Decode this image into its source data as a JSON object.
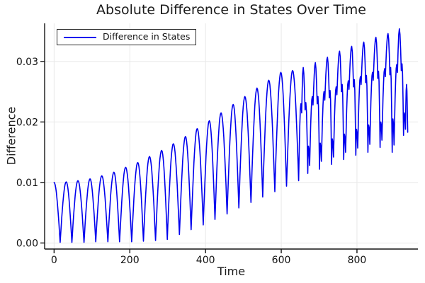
{
  "chart_data": {
    "type": "line",
    "title": "Absolute Difference in States Over Time",
    "xlabel": "Time",
    "ylabel": "Difference",
    "xlim": [
      -25,
      961
    ],
    "ylim": [
      -0.001,
      0.0363
    ],
    "grid": true,
    "legend": {
      "position": "top-left",
      "entries": [
        {
          "label": "Difference in States",
          "color": "#0000ee"
        }
      ]
    },
    "x_axis": {
      "tick_values": [
        0,
        200,
        400,
        600,
        800
      ],
      "tick_labels": [
        "0",
        "200",
        "400",
        "600",
        "800"
      ]
    },
    "y_axis": {
      "tick_values": [
        0,
        0.01,
        0.02,
        0.03
      ],
      "tick_labels": [
        "0.00",
        "0.01",
        "0.02",
        "0.03"
      ]
    },
    "series": [
      {
        "name": "Difference in States",
        "color": "#0000ee",
        "shape": "abs-oscillation-extrema",
        "points": [
          [
            0,
            0.01
          ],
          [
            16,
            0.0001
          ],
          [
            32,
            0.0101
          ],
          [
            47,
            0.0001
          ],
          [
            63,
            0.0103
          ],
          [
            79,
            0.0001
          ],
          [
            95,
            0.0106
          ],
          [
            110,
            0.0002
          ],
          [
            126,
            0.0111
          ],
          [
            142,
            0.0002
          ],
          [
            158,
            0.0117
          ],
          [
            173,
            0.0002
          ],
          [
            189,
            0.0125
          ],
          [
            205,
            0.0002
          ],
          [
            221,
            0.0133
          ],
          [
            236,
            0.0003
          ],
          [
            252,
            0.0143
          ],
          [
            268,
            0.0004
          ],
          [
            284,
            0.0153
          ],
          [
            299,
            0.0006
          ],
          [
            315,
            0.0164
          ],
          [
            331,
            0.0014
          ],
          [
            347,
            0.0176
          ],
          [
            362,
            0.0022
          ],
          [
            378,
            0.0189
          ],
          [
            394,
            0.003
          ],
          [
            410,
            0.0202
          ],
          [
            425,
            0.0039
          ],
          [
            441,
            0.0215
          ],
          [
            457,
            0.0048
          ],
          [
            473,
            0.0229
          ],
          [
            488,
            0.0058
          ],
          [
            504,
            0.0242
          ],
          [
            520,
            0.0067
          ],
          [
            536,
            0.0256
          ],
          [
            551,
            0.0076
          ],
          [
            567,
            0.0269
          ],
          [
            583,
            0.0085
          ],
          [
            599,
            0.0282
          ],
          [
            614,
            0.0094
          ],
          [
            630,
            0.0285
          ],
          [
            646,
            0.0103
          ],
          [
            652,
            0.023
          ],
          [
            654,
            0.0215
          ],
          [
            658,
            0.029
          ],
          [
            663,
            0.022
          ],
          [
            665,
            0.0232
          ],
          [
            670,
            0.0115
          ],
          [
            672,
            0.016
          ],
          [
            675,
            0.0128
          ],
          [
            682,
            0.0242
          ],
          [
            684,
            0.0228
          ],
          [
            690,
            0.0298
          ],
          [
            695,
            0.023
          ],
          [
            697,
            0.0242
          ],
          [
            701,
            0.0122
          ],
          [
            703,
            0.0165
          ],
          [
            706,
            0.0135
          ],
          [
            713,
            0.025
          ],
          [
            715,
            0.0236
          ],
          [
            722,
            0.0307
          ],
          [
            727,
            0.024
          ],
          [
            729,
            0.0252
          ],
          [
            733,
            0.013
          ],
          [
            735,
            0.0172
          ],
          [
            738,
            0.0142
          ],
          [
            745,
            0.0258
          ],
          [
            747,
            0.0245
          ],
          [
            754,
            0.0317
          ],
          [
            759,
            0.025
          ],
          [
            761,
            0.0262
          ],
          [
            765,
            0.0138
          ],
          [
            767,
            0.018
          ],
          [
            770,
            0.015
          ],
          [
            777,
            0.0268
          ],
          [
            779,
            0.0254
          ],
          [
            786,
            0.0325
          ],
          [
            791,
            0.0258
          ],
          [
            793,
            0.027
          ],
          [
            797,
            0.0145
          ],
          [
            799,
            0.0188
          ],
          [
            802,
            0.0157
          ],
          [
            809,
            0.0275
          ],
          [
            811,
            0.0262
          ],
          [
            818,
            0.0332
          ],
          [
            823,
            0.0265
          ],
          [
            825,
            0.0277
          ],
          [
            829,
            0.015
          ],
          [
            831,
            0.0195
          ],
          [
            834,
            0.0163
          ],
          [
            841,
            0.0282
          ],
          [
            843,
            0.0269
          ],
          [
            850,
            0.034
          ],
          [
            855,
            0.0272
          ],
          [
            857,
            0.0284
          ],
          [
            861,
            0.0158
          ],
          [
            863,
            0.02
          ],
          [
            866,
            0.017
          ],
          [
            873,
            0.0288
          ],
          [
            875,
            0.0275
          ],
          [
            882,
            0.0346
          ],
          [
            887,
            0.0278
          ],
          [
            889,
            0.029
          ],
          [
            893,
            0.015
          ],
          [
            895,
            0.0205
          ],
          [
            898,
            0.0162
          ],
          [
            905,
            0.0295
          ],
          [
            907,
            0.0282
          ],
          [
            912,
            0.0354
          ],
          [
            917,
            0.0285
          ],
          [
            919,
            0.0296
          ],
          [
            923,
            0.0178
          ],
          [
            925,
            0.0215
          ],
          [
            928,
            0.0188
          ],
          [
            931,
            0.0262
          ],
          [
            934,
            0.0183
          ]
        ]
      }
    ]
  },
  "colors": {
    "line": "#0000ee",
    "grid": "#e8e8e8",
    "axis": "#141414",
    "tick_text": "#111111",
    "background": "#ffffff"
  }
}
